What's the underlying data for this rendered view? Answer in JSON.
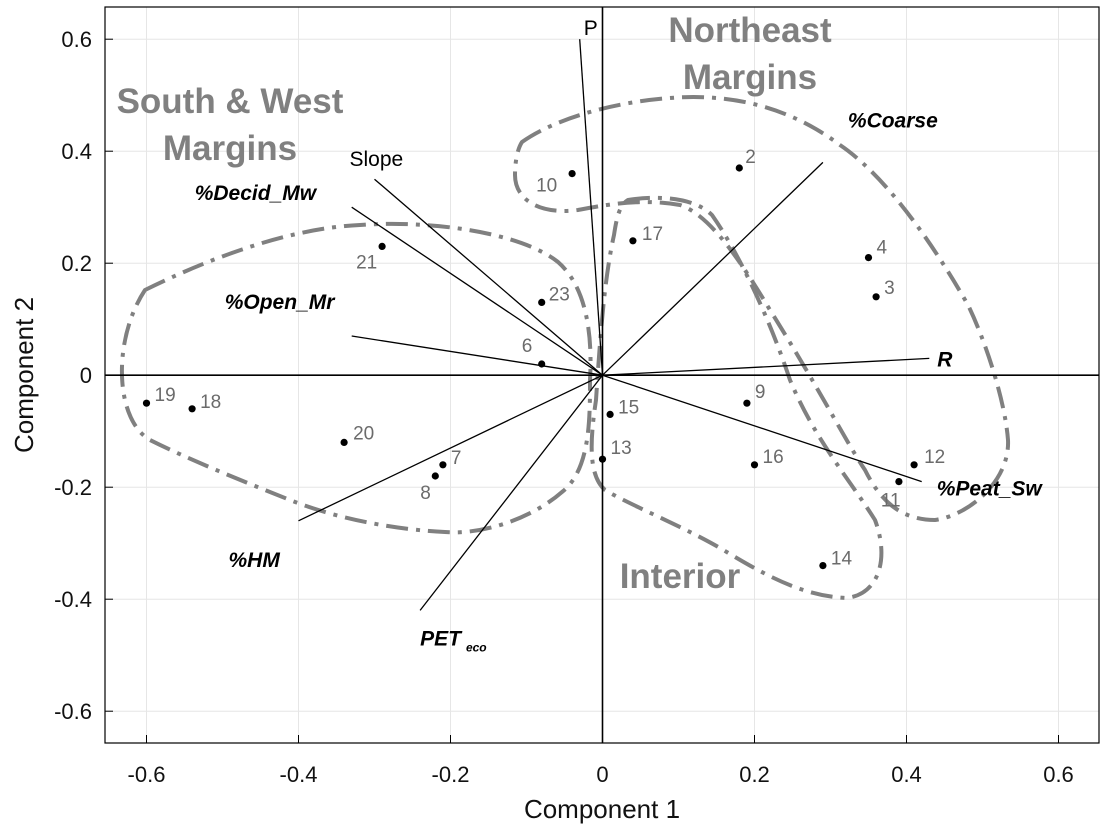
{
  "chart_data": {
    "type": "scatter",
    "xlabel": "Component 1",
    "ylabel": "Component 2",
    "xlim": [
      -0.65,
      0.65
    ],
    "ylim": [
      -0.65,
      0.65
    ],
    "x_ticks": [
      "-0.6",
      "-0.4",
      "-0.2",
      "0",
      "0.2",
      "0.4",
      "0.6"
    ],
    "y_ticks": [
      "-0.6",
      "-0.4",
      "-0.2",
      "0",
      "0.2",
      "0.4",
      "0.6"
    ],
    "grid": true,
    "points": [
      {
        "label": "2",
        "x": 0.18,
        "y": 0.37
      },
      {
        "label": "3",
        "x": 0.36,
        "y": 0.14
      },
      {
        "label": "4",
        "x": 0.35,
        "y": 0.21
      },
      {
        "label": "6",
        "x": -0.08,
        "y": 0.02
      },
      {
        "label": "7",
        "x": -0.21,
        "y": -0.16
      },
      {
        "label": "8",
        "x": -0.22,
        "y": -0.18
      },
      {
        "label": "9",
        "x": 0.19,
        "y": -0.05
      },
      {
        "label": "10",
        "x": -0.04,
        "y": 0.36
      },
      {
        "label": "11",
        "x": 0.39,
        "y": -0.19
      },
      {
        "label": "12",
        "x": 0.41,
        "y": -0.16
      },
      {
        "label": "13",
        "x": 0.0,
        "y": -0.15
      },
      {
        "label": "14",
        "x": 0.29,
        "y": -0.34
      },
      {
        "label": "15",
        "x": 0.01,
        "y": -0.07
      },
      {
        "label": "16",
        "x": 0.2,
        "y": -0.16
      },
      {
        "label": "17",
        "x": 0.04,
        "y": 0.24
      },
      {
        "label": "18",
        "x": -0.54,
        "y": -0.06
      },
      {
        "label": "19",
        "x": -0.6,
        "y": -0.05
      },
      {
        "label": "20",
        "x": -0.34,
        "y": -0.12
      },
      {
        "label": "21",
        "x": -0.29,
        "y": 0.23
      },
      {
        "label": "23",
        "x": -0.08,
        "y": 0.13
      }
    ],
    "vectors": [
      {
        "label": "P",
        "sub": "",
        "x": -0.03,
        "y": 0.6,
        "style": "plain"
      },
      {
        "label": "Slope",
        "sub": "",
        "x": -0.3,
        "y": 0.35,
        "style": "plain"
      },
      {
        "label": "%Decid_Mw",
        "sub": "",
        "x": -0.33,
        "y": 0.3,
        "style": "bold-italic"
      },
      {
        "label": "%Open_Mr",
        "sub": "",
        "x": -0.33,
        "y": 0.07,
        "style": "bold-italic"
      },
      {
        "label": "%Coarse",
        "sub": "",
        "x": 0.29,
        "y": 0.38,
        "style": "bold-italic"
      },
      {
        "label": "R",
        "sub": "",
        "x": 0.43,
        "y": 0.03,
        "style": "bold-italic"
      },
      {
        "label": "%Peat_Sw",
        "sub": "",
        "x": 0.42,
        "y": -0.19,
        "style": "bold-italic"
      },
      {
        "label": "%HM",
        "sub": "",
        "x": -0.4,
        "y": -0.26,
        "style": "bold-italic"
      },
      {
        "label": "PET",
        "sub": "eco",
        "x": -0.24,
        "y": -0.42,
        "style": "bold-italic"
      }
    ],
    "regions": [
      "South & West Margins",
      "Northeast Margins",
      "Interior"
    ]
  }
}
